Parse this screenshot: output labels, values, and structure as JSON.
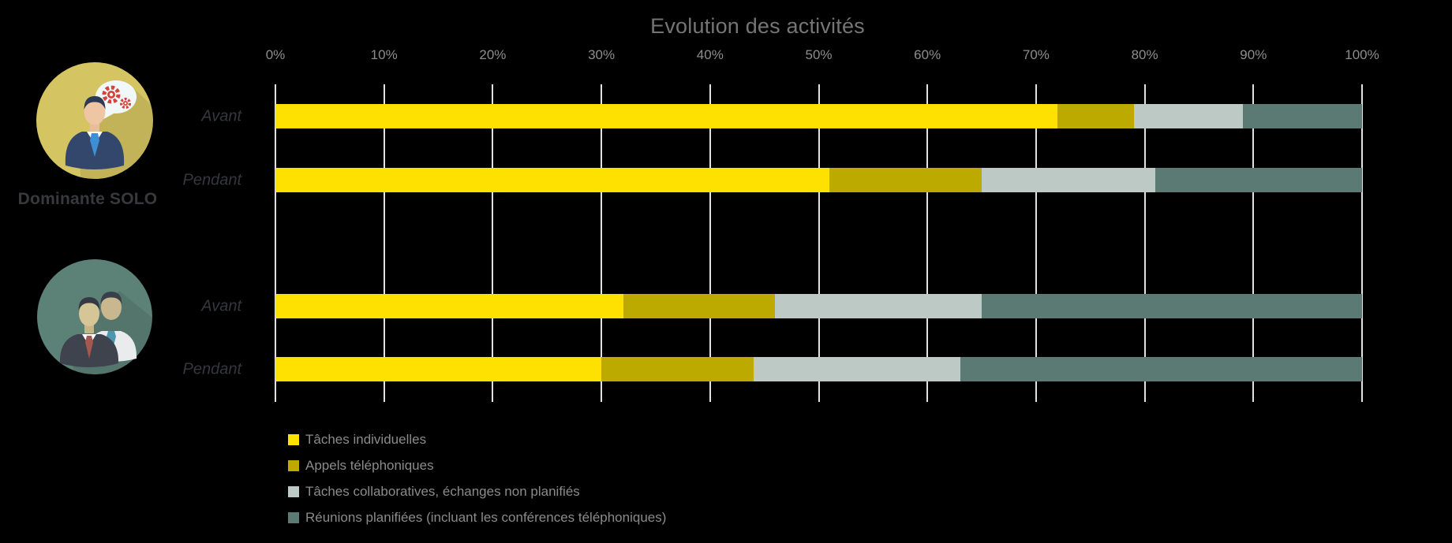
{
  "page": {
    "background": "#000000"
  },
  "left_panel": {
    "solo_icon_label": "Dominante SOLO",
    "icons": [
      "solo-businessman-with-gears-speech-bubble",
      "two-businessmen-collaboration"
    ]
  },
  "chart_data": {
    "type": "bar",
    "orientation": "horizontal",
    "stacked": true,
    "title": "Evolution des activités",
    "x_axis": {
      "min": 0,
      "max": 100,
      "ticks": [
        "0%",
        "10%",
        "20%",
        "30%",
        "40%",
        "50%",
        "60%",
        "70%",
        "80%",
        "90%",
        "100%"
      ]
    },
    "gridlines": true,
    "legend_position": "bottom-left",
    "series": [
      {
        "name": "Tâches individuelles",
        "color": "#FFE100"
      },
      {
        "name": "Appels téléphoniques",
        "color": "#BCAA00"
      },
      {
        "name": "Tâches collaboratives, échanges non planifiés",
        "color": "#BDC9C5"
      },
      {
        "name": "Réunions planifiées (incluant les conférences téléphoniques)",
        "color": "#5B7A73"
      }
    ],
    "groups": [
      {
        "name": "Dominante SOLO",
        "rows": [
          {
            "label": "Avant",
            "values": [
              72,
              7,
              10,
              11
            ]
          },
          {
            "label": "Pendant",
            "values": [
              51,
              14,
              16,
              19
            ]
          }
        ]
      },
      {
        "name": "",
        "rows": [
          {
            "label": "Avant",
            "values": [
              32,
              14,
              19,
              35
            ]
          },
          {
            "label": "Pendant",
            "values": [
              30,
              14,
              19,
              37
            ]
          }
        ]
      }
    ]
  }
}
